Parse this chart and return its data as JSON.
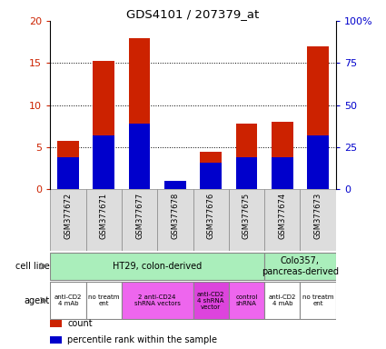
{
  "title": "GDS4101 / 207379_at",
  "samples": [
    "GSM377672",
    "GSM377671",
    "GSM377677",
    "GSM377678",
    "GSM377676",
    "GSM377675",
    "GSM377674",
    "GSM377673"
  ],
  "counts": [
    5.8,
    15.3,
    18.0,
    0.9,
    4.5,
    7.8,
    8.0,
    17.0
  ],
  "percentile_ranks_pct": [
    19,
    32,
    39,
    5,
    16,
    19,
    19,
    32
  ],
  "bar_color": "#cc2200",
  "percentile_color": "#0000cc",
  "ylim_left": [
    0,
    20
  ],
  "ylim_right": [
    0,
    100
  ],
  "yticks_left": [
    0,
    5,
    10,
    15,
    20
  ],
  "ytick_labels_left": [
    "0",
    "5",
    "10",
    "15",
    "20"
  ],
  "yticks_right": [
    0,
    25,
    50,
    75,
    100
  ],
  "ytick_labels_right": [
    "0",
    "25",
    "50",
    "75",
    "100%"
  ],
  "bar_width": 0.6,
  "cell_line_groups": [
    {
      "label": "HT29, colon-derived",
      "start": 0,
      "end": 6,
      "color": "#aaeebb"
    },
    {
      "label": "Colo357,\npancreas-derived",
      "start": 6,
      "end": 8,
      "color": "#aaeebb"
    }
  ],
  "agent_spans": [
    {
      "label": "anti-CD2\n4 mAb",
      "start": 0,
      "end": 1,
      "color": "#ffffff"
    },
    {
      "label": "no treatm\nent",
      "start": 1,
      "end": 2,
      "color": "#ffffff"
    },
    {
      "label": "2 anti-CD24\nshRNA vectors",
      "start": 2,
      "end": 4,
      "color": "#ee66ee"
    },
    {
      "label": "anti-CD2\n4 shRNA\nvector",
      "start": 4,
      "end": 5,
      "color": "#dd44dd"
    },
    {
      "label": "control\nshRNA",
      "start": 5,
      "end": 6,
      "color": "#ee66ee"
    },
    {
      "label": "anti-CD2\n4 mAb",
      "start": 6,
      "end": 7,
      "color": "#ffffff"
    },
    {
      "label": "no treatm\nent",
      "start": 7,
      "end": 8,
      "color": "#ffffff"
    }
  ],
  "axis_label_color_left": "#cc2200",
  "axis_label_color_right": "#0000cc",
  "legend_items": [
    {
      "label": "count",
      "color": "#cc2200"
    },
    {
      "label": "percentile rank within the sample",
      "color": "#0000cc"
    }
  ]
}
